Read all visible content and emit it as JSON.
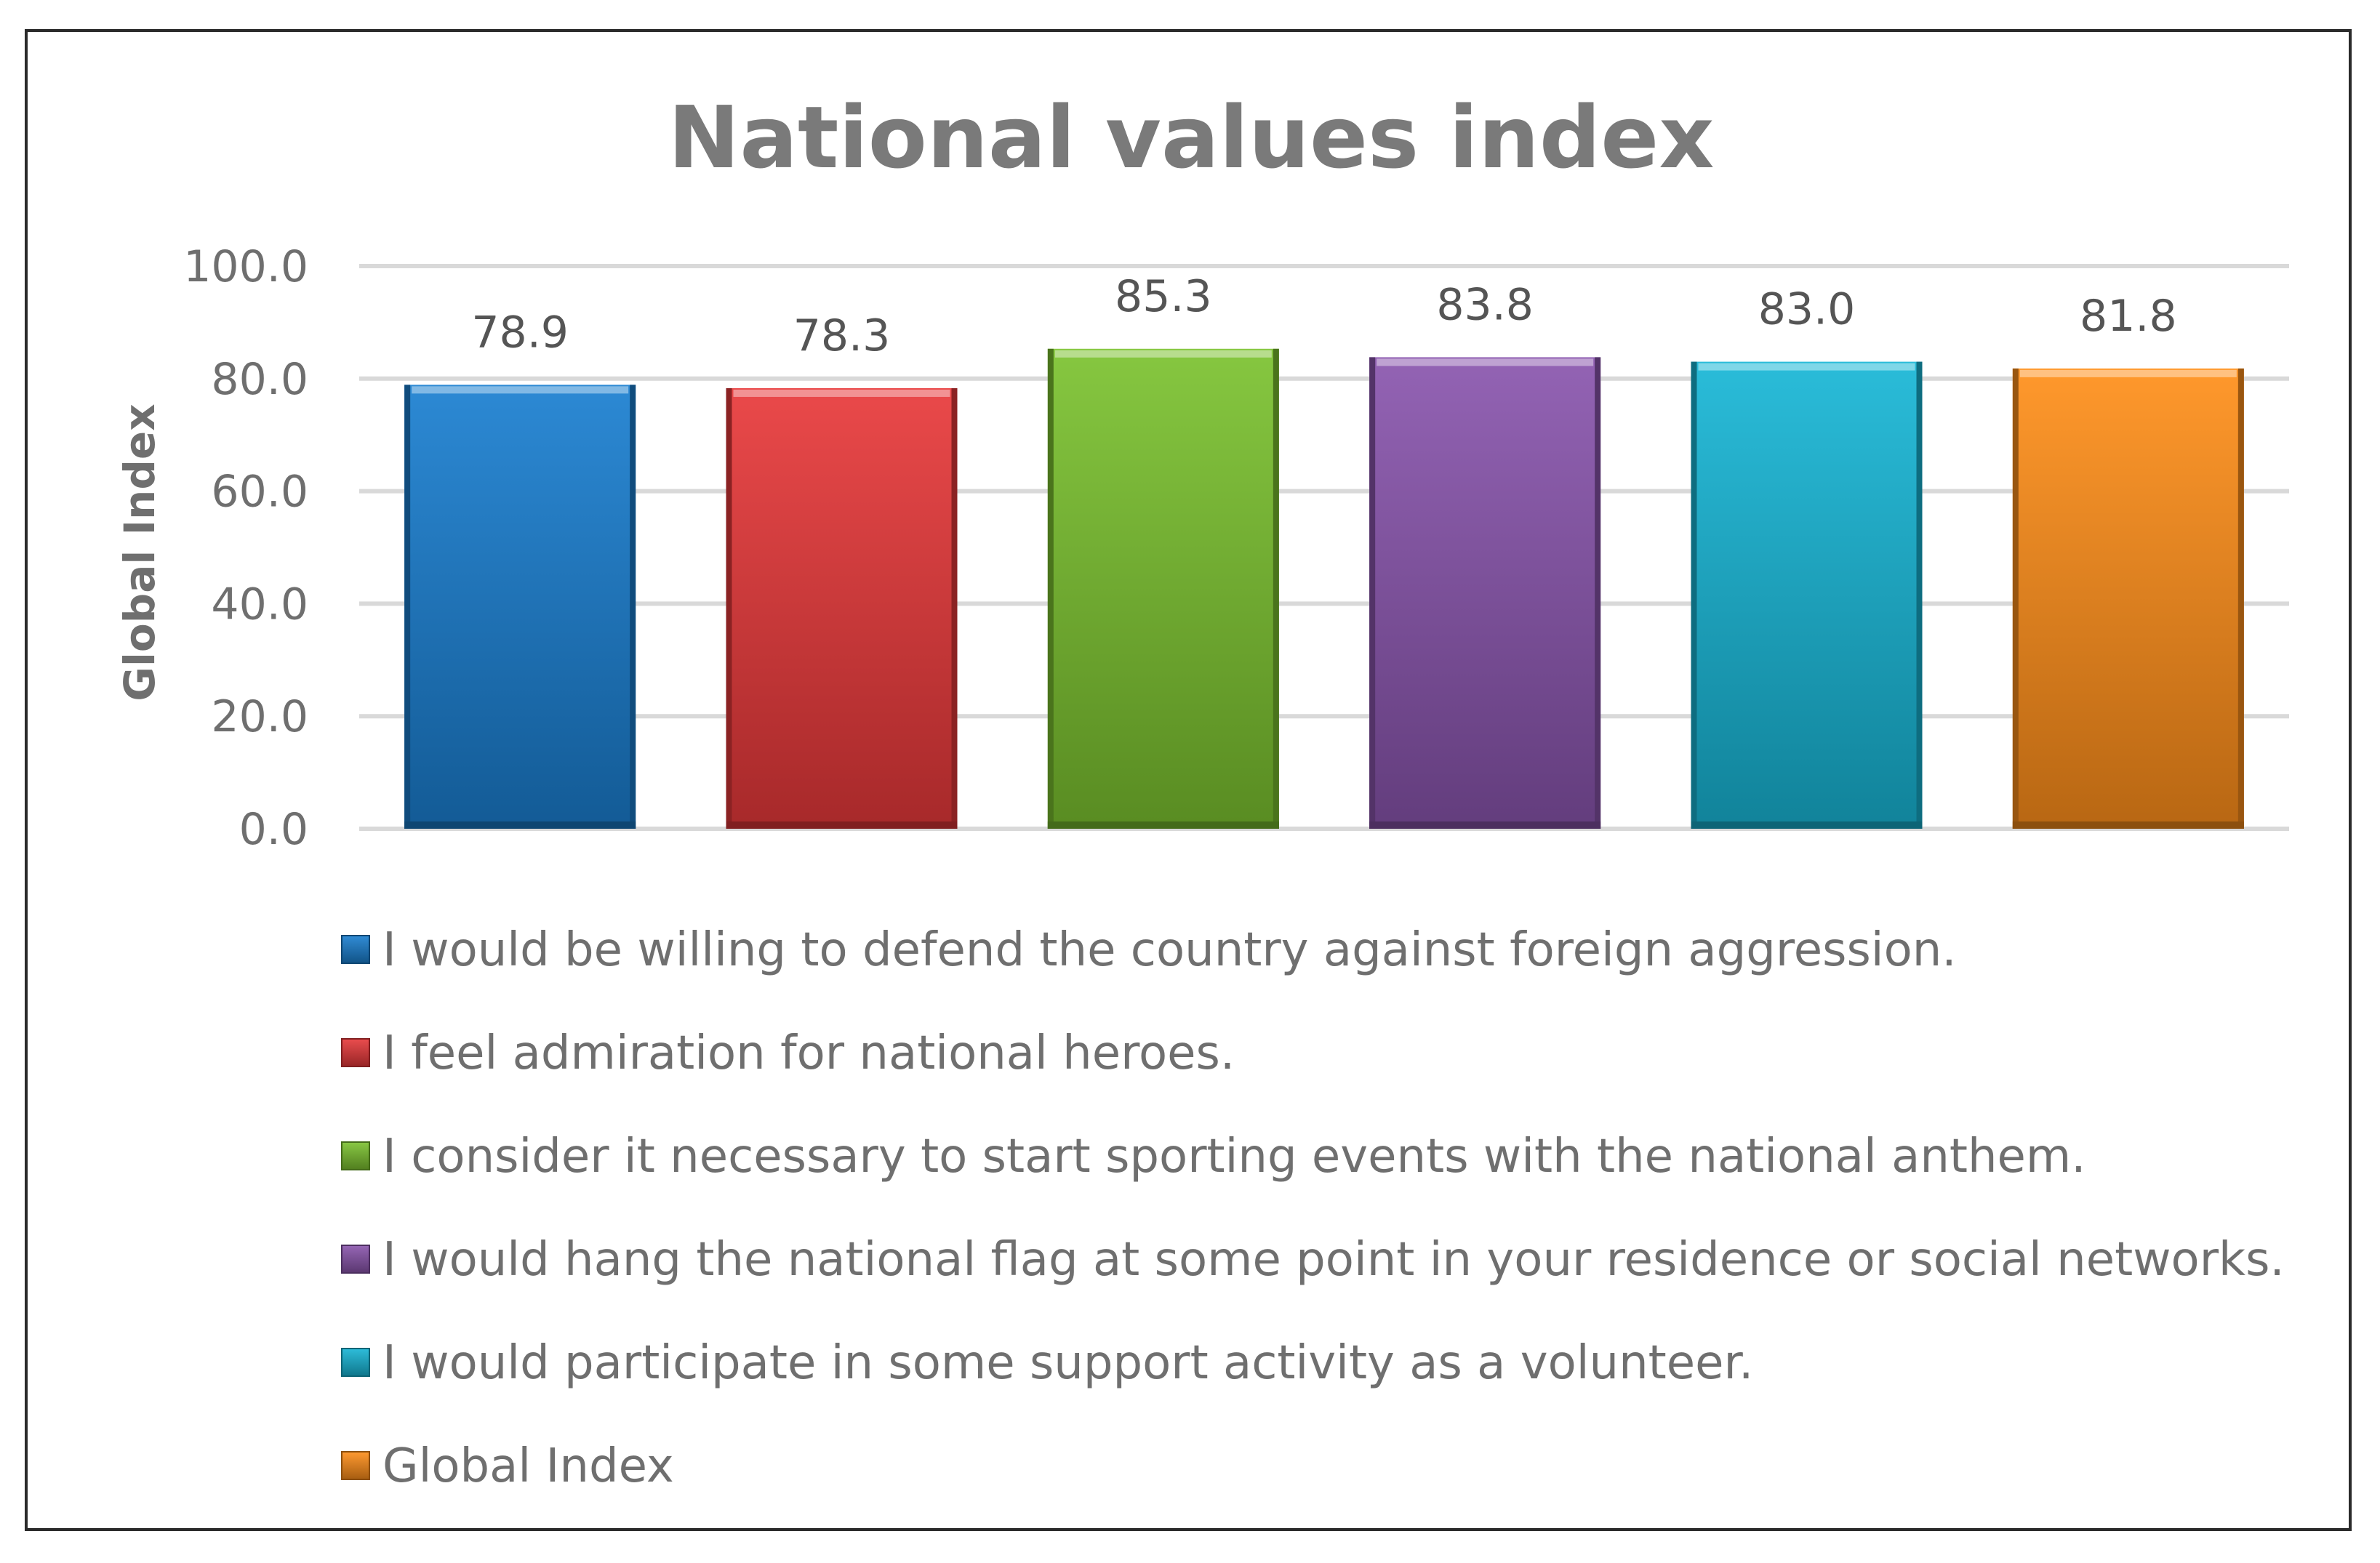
{
  "chart_data": {
    "type": "bar",
    "title": "National values index",
    "xlabel": "",
    "ylabel": "Global Index",
    "ylim": [
      0,
      100
    ],
    "yticks": [
      "0.0",
      "20.0",
      "40.0",
      "60.0",
      "80.0",
      "100.0"
    ],
    "grid": true,
    "legend_position": "bottom",
    "series": [
      {
        "name": "I would be willing to defend the country against foreign aggression.",
        "value": 78.9,
        "label": "78.9",
        "color": "#1a7fd0"
      },
      {
        "name": "I feel admiration for national heroes.",
        "value": 78.3,
        "label": "78.3",
        "color": "#e8393a"
      },
      {
        "name": "I consider it necessary to start sporting events with the national anthem.",
        "value": 85.3,
        "label": "85.3",
        "color": "#7cc22f"
      },
      {
        "name": "I would hang the national flag at some point in your residence or social networks.",
        "value": 83.8,
        "label": "83.8",
        "color": "#8a55ad"
      },
      {
        "name": "I would participate in some support activity as a volunteer.",
        "value": 83.0,
        "label": "83.0",
        "color": "#17b6d6"
      },
      {
        "name": "Global Index",
        "value": 81.8,
        "label": "81.8",
        "color": "#ff8f1a"
      }
    ]
  }
}
